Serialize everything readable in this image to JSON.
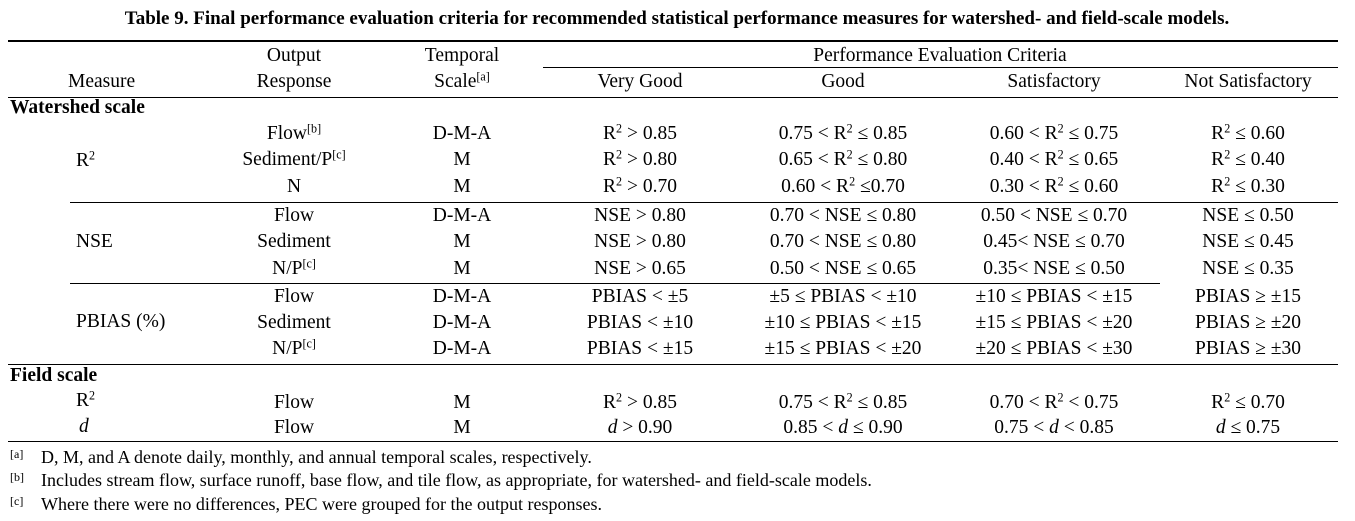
{
  "title": "Table 9. Final performance evaluation criteria for recommended statistical performance measures for watershed- and field-scale models.",
  "headers": {
    "measure": "Measure",
    "output_line1": "Output",
    "output_line2": "Response",
    "temporal_line1": "Temporal",
    "temporal_line2": "Scale",
    "temporal_note": "[a]",
    "pec": "Performance Evaluation Criteria",
    "very_good": "Very Good",
    "good": "Good",
    "satisfactory": "Satisfactory",
    "not_satisfactory": "Not Satisfactory"
  },
  "sections": {
    "watershed": "Watershed scale",
    "field": "Field scale"
  },
  "measures": {
    "r2": "R",
    "r2_sup": "2",
    "nse": "NSE",
    "pbias": "PBIAS (%)",
    "d": "d"
  },
  "notes": {
    "a_mark": "[a]",
    "a_text": "D, M, and A denote daily, monthly, and annual temporal scales, respectively.",
    "b_mark": "[b]",
    "b_text": "Includes stream flow, surface runoff, base flow, and tile flow, as appropriate, for watershed- and field-scale models.",
    "c_mark": "[c]",
    "c_text": "Where there were no differences, PEC were grouped for the output responses."
  },
  "rows": [
    {
      "name": "Flow",
      "note": "[b]",
      "scale": "D-M-A",
      "vg": "R² > 0.85",
      "g": "0.75 < R² ≤ 0.85",
      "s": "0.60 < R² ≤ 0.75",
      "ns": "R² ≤ 0.60"
    },
    {
      "name": "Sediment/P",
      "note": "[c]",
      "scale": "M",
      "vg": "R² > 0.80",
      "g": "0.65 < R² ≤ 0.80",
      "s": "0.40 < R² ≤ 0.65",
      "ns": "R² ≤ 0.40"
    },
    {
      "name": "N",
      "note": "",
      "scale": "M",
      "vg": "R² > 0.70",
      "g": "0.60 < R² ≤0.70",
      "s": "0.30 < R² ≤ 0.60",
      "ns": "R² ≤ 0.30"
    },
    {
      "name": "Flow",
      "note": "",
      "scale": "D-M-A",
      "vg": "NSE > 0.80",
      "g": "0.70 < NSE ≤ 0.80",
      "s": "0.50 < NSE ≤ 0.70",
      "ns": "NSE ≤ 0.50"
    },
    {
      "name": "Sediment",
      "note": "",
      "scale": "M",
      "vg": "NSE > 0.80",
      "g": "0.70 < NSE ≤ 0.80",
      "s": "0.45< NSE ≤ 0.70",
      "ns": "NSE ≤ 0.45"
    },
    {
      "name": "N/P",
      "note": "[c]",
      "scale": "M",
      "vg": "NSE > 0.65",
      "g": "0.50 < NSE ≤ 0.65",
      "s": "0.35< NSE ≤ 0.50",
      "ns": "NSE ≤ 0.35"
    },
    {
      "name": "Flow",
      "note": "",
      "scale": "D-M-A",
      "vg": "PBIAS < ±5",
      "g": "±5 ≤ PBIAS < ±10",
      "s": "±10 ≤ PBIAS < ±15",
      "ns": "PBIAS ≥ ±15"
    },
    {
      "name": "Sediment",
      "note": "",
      "scale": "D-M-A",
      "vg": "PBIAS < ±10",
      "g": "±10 ≤ PBIAS < ±15",
      "s": "±15 ≤ PBIAS < ±20",
      "ns": "PBIAS ≥ ±20"
    },
    {
      "name": "N/P",
      "note": "[c]",
      "scale": "D-M-A",
      "vg": "PBIAS < ±15",
      "g": "±15 ≤ PBIAS < ±20",
      "s": "±20 ≤ PBIAS < ±30",
      "ns": "PBIAS ≥ ±30"
    },
    {
      "name": "Flow",
      "note": "",
      "scale": "M",
      "vg": "R² > 0.85",
      "g": "0.75 < R² ≤ 0.85",
      "s": "0.70 < R² < 0.75",
      "ns": "R² ≤ 0.70"
    },
    {
      "name": "Flow",
      "note": "",
      "scale": "M",
      "vg": "d > 0.90",
      "g": "0.85 < d ≤ 0.90",
      "s": "0.75 < d < 0.85",
      "ns": "d ≤ 0.75"
    }
  ]
}
